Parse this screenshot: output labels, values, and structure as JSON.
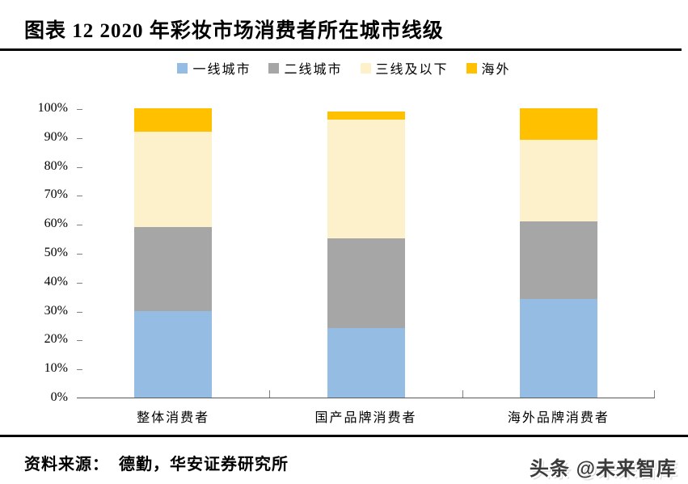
{
  "title": "图表 12 2020 年彩妆市场消费者所在城市线级",
  "chart_data": {
    "type": "bar",
    "stacked": true,
    "orientation": "vertical",
    "title": "图表 12 2020 年彩妆市场消费者所在城市线级",
    "categories": [
      "整体消费者",
      "国产品牌消费者",
      "海外品牌消费者"
    ],
    "series": [
      {
        "name": "一线城市",
        "color": "#95BCE2",
        "values": [
          30,
          24,
          34
        ]
      },
      {
        "name": "二线城市",
        "color": "#A6A6A6",
        "values": [
          29,
          31,
          27
        ]
      },
      {
        "name": "三线及以下",
        "color": "#FDF1CC",
        "values": [
          33,
          41,
          28
        ]
      },
      {
        "name": "海外",
        "color": "#FFC000",
        "values": [
          8,
          3,
          11
        ]
      }
    ],
    "xlabel": "",
    "ylabel": "",
    "ylim": [
      0,
      100
    ],
    "y_tick_step": 10,
    "y_tick_labels": [
      "0%",
      "10%",
      "20%",
      "30%",
      "40%",
      "50%",
      "60%",
      "70%",
      "80%",
      "90%",
      "100%"
    ],
    "grid": false,
    "legend_position": "top"
  },
  "footer": {
    "source_label": "资料来源：",
    "source_text": "德勤，华安证券研究所",
    "watermark": "头条 @未来智库"
  }
}
